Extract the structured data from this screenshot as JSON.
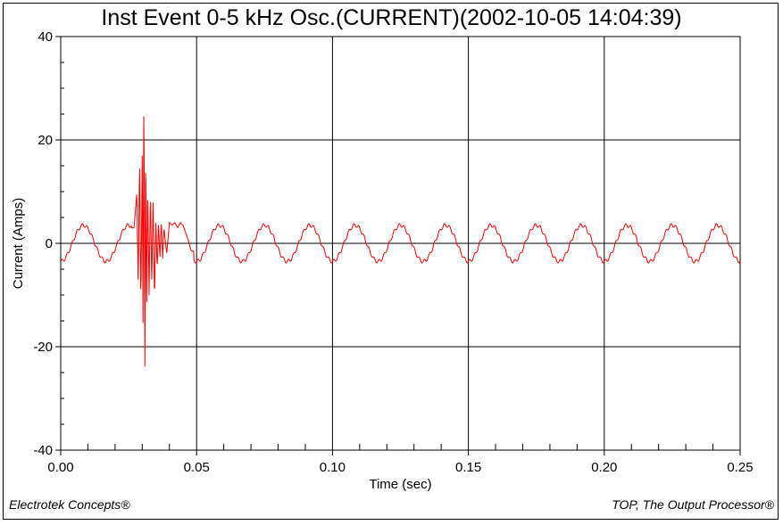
{
  "header": {
    "title": "Inst Event 0-5 kHz Osc.(CURRENT)(2002-10-05 14:04:39)"
  },
  "footer": {
    "left": "Electrotek Concepts®",
    "right": "TOP, The Output Processor®"
  },
  "colors": {
    "series": "#ff0000",
    "grid": "#000000",
    "axis": "#000000"
  },
  "chart_data": {
    "type": "line",
    "title": "Inst Event 0-5 kHz Osc.(CURRENT)(2002-10-05 14:04:39)",
    "xlabel": "Time (sec)",
    "ylabel": "Current (Amps)",
    "xlim": [
      0.0,
      0.25
    ],
    "ylim": [
      -40,
      40
    ],
    "xticks": [
      "0.00",
      "0.05",
      "0.10",
      "0.15",
      "0.20",
      "0.25"
    ],
    "yticks": [
      "-40",
      "-20",
      "0",
      "20",
      "40"
    ],
    "grid": true,
    "series": [
      {
        "waveform": "sine",
        "frequency_hz": 60,
        "amplitude": 3.5,
        "x": [
          0.0,
          0.0042,
          0.0083,
          0.0125,
          0.0167,
          0.0208,
          0.025,
          0.027,
          0.028,
          0.0285,
          0.029,
          0.0295,
          0.03,
          0.0303,
          0.0306,
          0.031,
          0.0313,
          0.0316,
          0.032,
          0.0325,
          0.033,
          0.0335,
          0.034,
          0.0345,
          0.035,
          0.0355,
          0.036,
          0.0365,
          0.037,
          0.0375,
          0.038,
          0.039,
          0.04,
          0.041,
          0.042,
          0.043,
          0.044,
          0.045,
          0.046,
          0.047,
          0.048,
          0.05,
          0.0542,
          0.0583,
          0.0625,
          0.0667,
          0.0708,
          0.075,
          0.0792,
          0.0833,
          0.0875,
          0.0917,
          0.0958,
          0.1,
          0.1042,
          0.1083,
          0.1125,
          0.1167,
          0.1208,
          0.125,
          0.1292,
          0.1333,
          0.1375,
          0.1417,
          0.1458,
          0.15,
          0.1542,
          0.1583,
          0.1625,
          0.1667,
          0.1708,
          0.175,
          0.1792,
          0.1833,
          0.1875,
          0.1917,
          0.1958,
          0.2,
          0.2042,
          0.2083,
          0.2125,
          0.2167,
          0.2208,
          0.225,
          0.2292,
          0.2333,
          0.2375,
          0.2417,
          0.2458,
          0.25
        ],
        "y": [
          -1.0,
          -3.5,
          0.0,
          3.5,
          0.0,
          -3.5,
          0.0,
          3.0,
          10.0,
          -8.0,
          16.0,
          -12.0,
          17.0,
          -18.0,
          32.0,
          -28.0,
          22.0,
          -16.0,
          12.0,
          -10.0,
          10.0,
          -8.0,
          9.0,
          -11.0,
          4.0,
          -5.0,
          4.0,
          -3.0,
          4.5,
          -3.0,
          3.0,
          -2.0,
          4.0,
          3.5,
          4.0,
          3.0,
          4.0,
          3.5,
          2.0,
          0.5,
          -1.5,
          -3.5,
          0.0,
          3.5,
          0.0,
          -3.5,
          0.0,
          3.5,
          0.0,
          -3.5,
          0.0,
          3.5,
          0.0,
          -3.5,
          0.0,
          3.5,
          0.0,
          -3.5,
          0.0,
          3.5,
          0.0,
          -3.5,
          0.0,
          3.5,
          0.0,
          -3.5,
          0.0,
          3.5,
          0.0,
          -3.5,
          0.0,
          3.5,
          0.0,
          -3.5,
          0.0,
          3.5,
          0.0,
          -3.5,
          0.0,
          3.5,
          0.0,
          -3.5,
          0.0,
          3.5,
          0.0,
          -3.5,
          0.0,
          3.5,
          0.0,
          -1.0
        ]
      }
    ]
  }
}
